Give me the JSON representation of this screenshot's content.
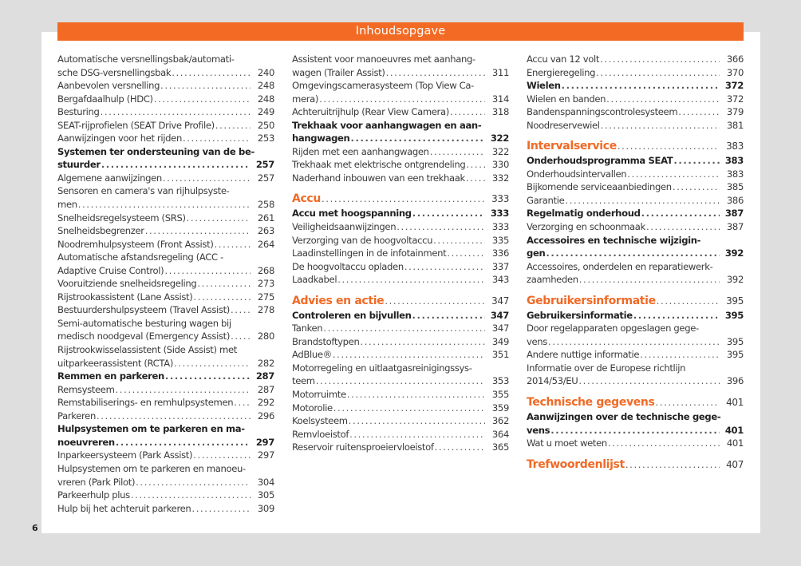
{
  "header": {
    "title": "Inhoudsopgave"
  },
  "page_number": "6",
  "colors": {
    "accent": "#f26a24",
    "background": "#dedede",
    "text": "#3a3a3a"
  },
  "columns": [
    [
      {
        "lines": [
          "Automatische versnellingsbak/automati-",
          "sche DSG-versnellingsbak"
        ],
        "page": "240",
        "style": "normal"
      },
      {
        "lines": [
          "Aanbevolen versnelling"
        ],
        "page": "248",
        "style": "normal"
      },
      {
        "lines": [
          "Bergafdaalhulp (HDC)"
        ],
        "page": "248",
        "style": "normal"
      },
      {
        "lines": [
          "Besturing"
        ],
        "page": "249",
        "style": "normal"
      },
      {
        "lines": [
          "SEAT-rijprofielen (SEAT Drive Profile)"
        ],
        "page": "250",
        "style": "normal"
      },
      {
        "lines": [
          "Aanwijzingen voor het rijden"
        ],
        "page": "253",
        "style": "normal"
      },
      {
        "lines": [
          "Systemen ter ondersteuning van de be-",
          "stuurder"
        ],
        "page": "257",
        "style": "bold"
      },
      {
        "lines": [
          "Algemene aanwijzingen"
        ],
        "page": "257",
        "style": "normal"
      },
      {
        "lines": [
          "Sensoren en camera's van rijhulpsyste-",
          "men"
        ],
        "page": "258",
        "style": "normal"
      },
      {
        "lines": [
          "Snelheidsregelsysteem (SRS)"
        ],
        "page": "261",
        "style": "normal"
      },
      {
        "lines": [
          "Snelheidsbegrenzer"
        ],
        "page": "263",
        "style": "normal"
      },
      {
        "lines": [
          "Noodremhulpsysteem (Front Assist)"
        ],
        "page": "264",
        "style": "normal"
      },
      {
        "lines": [
          "Automatische afstandsregeling (ACC -",
          "Adaptive Cruise Control)"
        ],
        "page": "268",
        "style": "normal"
      },
      {
        "lines": [
          "Vooruitziende snelheidsregeling"
        ],
        "page": "273",
        "style": "normal"
      },
      {
        "lines": [
          "Rijstrookassistent (Lane Assist)"
        ],
        "page": "275",
        "style": "normal"
      },
      {
        "lines": [
          "Bestuurdershulpsysteem (Travel Assist)"
        ],
        "page": "278",
        "style": "normal"
      },
      {
        "lines": [
          "Semi-automatische besturing wagen bij",
          "medisch noodgeval (Emergency Assist)"
        ],
        "page": "280",
        "style": "normal"
      },
      {
        "lines": [
          "Rijstrookwisselassistent (Side Assist) met",
          "uitparkeerassistent (RCTA)"
        ],
        "page": "282",
        "style": "normal"
      },
      {
        "lines": [
          "Remmen en parkeren"
        ],
        "page": "287",
        "style": "bold"
      },
      {
        "lines": [
          "Remsysteem"
        ],
        "page": "287",
        "style": "normal"
      },
      {
        "lines": [
          "Remstabiliserings- en remhulpsystemen"
        ],
        "page": "292",
        "style": "normal"
      },
      {
        "lines": [
          "Parkeren"
        ],
        "page": "296",
        "style": "normal"
      },
      {
        "lines": [
          "Hulpsystemen om te parkeren en ma-",
          "noeuvreren"
        ],
        "page": "297",
        "style": "bold"
      },
      {
        "lines": [
          "Inparkeersysteem (Park Assist)"
        ],
        "page": "297",
        "style": "normal"
      },
      {
        "lines": [
          "Hulpsystemen om te parkeren en manoeu-",
          "vreren (Park Pilot)"
        ],
        "page": "304",
        "style": "normal"
      },
      {
        "lines": [
          "Parkeerhulp plus"
        ],
        "page": "305",
        "style": "normal"
      },
      {
        "lines": [
          "Hulp bij het achteruit parkeren"
        ],
        "page": "309",
        "style": "normal"
      }
    ],
    [
      {
        "lines": [
          "Assistent voor manoeuvres met aanhang-",
          "wagen (Trailer Assist)"
        ],
        "page": "311",
        "style": "normal"
      },
      {
        "lines": [
          "Omgevingscamerasysteem (Top View Ca-",
          "mera)"
        ],
        "page": "314",
        "style": "normal"
      },
      {
        "lines": [
          "Achteruitrijhulp (Rear View Camera)"
        ],
        "page": "318",
        "style": "normal"
      },
      {
        "lines": [
          "Trekhaak voor aanhangwagen en aan-",
          "hangwagen"
        ],
        "page": "322",
        "style": "bold"
      },
      {
        "lines": [
          "Rijden met een aanhangwagen"
        ],
        "page": "322",
        "style": "normal"
      },
      {
        "lines": [
          "Trekhaak met elektrische ontgrendeling"
        ],
        "page": "330",
        "style": "normal"
      },
      {
        "lines": [
          "Naderhand inbouwen van een trekhaak"
        ],
        "page": "332",
        "style": "normal"
      },
      {
        "lines": [
          "Accu"
        ],
        "page": "333",
        "style": "chapter"
      },
      {
        "lines": [
          "Accu met hoogspanning"
        ],
        "page": "333",
        "style": "bold"
      },
      {
        "lines": [
          "Veiligheidsaanwijzingen"
        ],
        "page": "333",
        "style": "normal"
      },
      {
        "lines": [
          "Verzorging van de hoogvoltaccu"
        ],
        "page": "335",
        "style": "normal"
      },
      {
        "lines": [
          "Laadinstellingen in de infotainment"
        ],
        "page": "336",
        "style": "normal"
      },
      {
        "lines": [
          "De hoogvoltaccu opladen"
        ],
        "page": "337",
        "style": "normal"
      },
      {
        "lines": [
          "Laadkabel"
        ],
        "page": "343",
        "style": "normal"
      },
      {
        "lines": [
          "Advies en actie"
        ],
        "page": "347",
        "style": "chapter"
      },
      {
        "lines": [
          "Controleren en bijvullen"
        ],
        "page": "347",
        "style": "bold"
      },
      {
        "lines": [
          "Tanken"
        ],
        "page": "347",
        "style": "normal"
      },
      {
        "lines": [
          "Brandstoftypen"
        ],
        "page": "349",
        "style": "normal"
      },
      {
        "lines": [
          "AdBlue®"
        ],
        "page": "351",
        "style": "normal"
      },
      {
        "lines": [
          "Motorregeling en uitlaatgasreinigingssys-",
          "teem"
        ],
        "page": "353",
        "style": "normal"
      },
      {
        "lines": [
          "Motorruimte"
        ],
        "page": "355",
        "style": "normal"
      },
      {
        "lines": [
          "Motorolie"
        ],
        "page": "359",
        "style": "normal"
      },
      {
        "lines": [
          "Koelsysteem"
        ],
        "page": "362",
        "style": "normal"
      },
      {
        "lines": [
          "Remvloeistof"
        ],
        "page": "364",
        "style": "normal"
      },
      {
        "lines": [
          "Reservoir ruitensproeiervloeistof"
        ],
        "page": "365",
        "style": "normal"
      }
    ],
    [
      {
        "lines": [
          "Accu van 12 volt"
        ],
        "page": "366",
        "style": "normal"
      },
      {
        "lines": [
          "Energieregeling"
        ],
        "page": "370",
        "style": "normal"
      },
      {
        "lines": [
          "Wielen"
        ],
        "page": "372",
        "style": "bold"
      },
      {
        "lines": [
          "Wielen en banden"
        ],
        "page": "372",
        "style": "normal"
      },
      {
        "lines": [
          "Bandenspanningscontrolesysteem"
        ],
        "page": "379",
        "style": "normal"
      },
      {
        "lines": [
          "Noodreservewiel"
        ],
        "page": "381",
        "style": "normal"
      },
      {
        "lines": [
          "Intervalservice"
        ],
        "page": "383",
        "style": "chapter"
      },
      {
        "lines": [
          "Onderhoudsprogramma SEAT"
        ],
        "page": "383",
        "style": "bold"
      },
      {
        "lines": [
          "Onderhoudsintervallen"
        ],
        "page": "383",
        "style": "normal"
      },
      {
        "lines": [
          "Bijkomende serviceaanbiedingen"
        ],
        "page": "385",
        "style": "normal"
      },
      {
        "lines": [
          "Garantie"
        ],
        "page": "386",
        "style": "normal"
      },
      {
        "lines": [
          "Regelmatig onderhoud"
        ],
        "page": "387",
        "style": "bold"
      },
      {
        "lines": [
          "Verzorging en schoonmaak"
        ],
        "page": "387",
        "style": "normal"
      },
      {
        "lines": [
          "Accessoires en technische wijzigin-",
          "gen"
        ],
        "page": "392",
        "style": "bold"
      },
      {
        "lines": [
          "Accessoires, onderdelen en reparatiewerk-",
          "zaamheden"
        ],
        "page": "392",
        "style": "normal"
      },
      {
        "lines": [
          "Gebruikersinformatie"
        ],
        "page": "395",
        "style": "chapter"
      },
      {
        "lines": [
          "Gebruikersinformatie"
        ],
        "page": "395",
        "style": "bold"
      },
      {
        "lines": [
          "Door regelapparaten opgeslagen gege-",
          "vens"
        ],
        "page": "395",
        "style": "normal"
      },
      {
        "lines": [
          "Andere nuttige informatie"
        ],
        "page": "395",
        "style": "normal"
      },
      {
        "lines": [
          "Informatie over de Europese richtlijn",
          "2014/53/EU"
        ],
        "page": "396",
        "style": "normal"
      },
      {
        "lines": [
          "Technische gegevens"
        ],
        "page": "401",
        "style": "chapter"
      },
      {
        "lines": [
          "Aanwijzingen over de technische gege-",
          "vens"
        ],
        "page": "401",
        "style": "bold"
      },
      {
        "lines": [
          "Wat u moet weten"
        ],
        "page": "401",
        "style": "normal"
      },
      {
        "lines": [
          "Trefwoordenlijst"
        ],
        "page": "407",
        "style": "chapter"
      }
    ]
  ]
}
